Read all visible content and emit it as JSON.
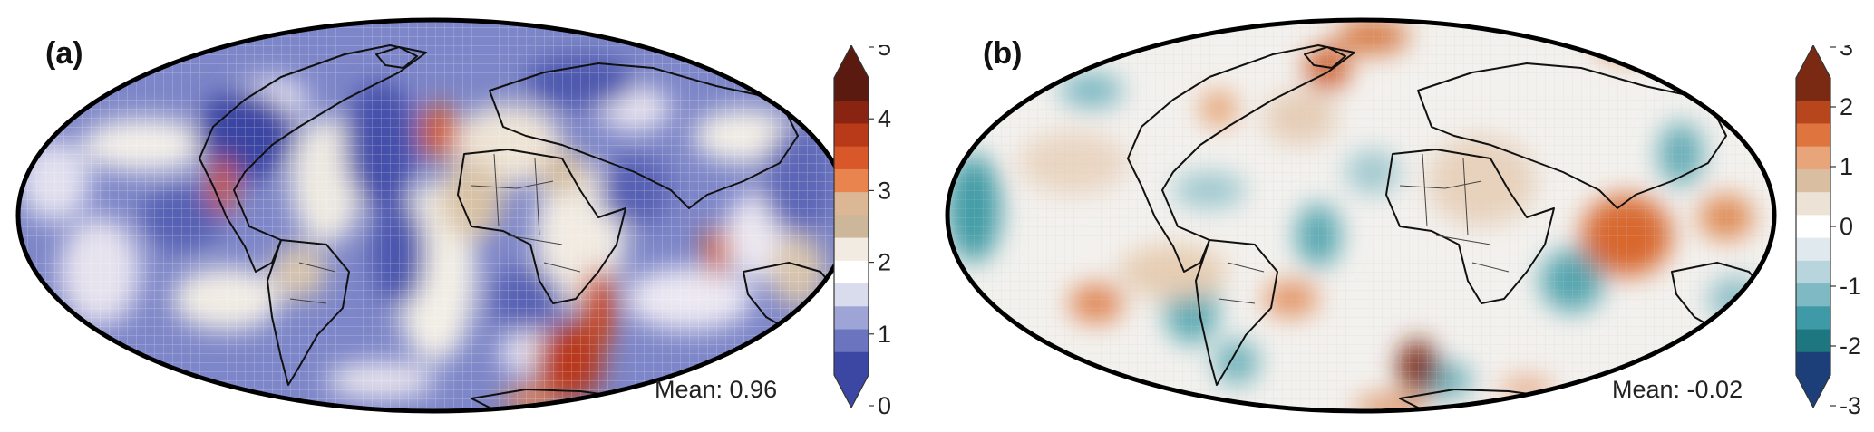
{
  "panels": [
    {
      "label": "(a)",
      "mean_text": "Mean: 0.96",
      "colorbar": {
        "min": 0,
        "max": 5,
        "ticks": [
          "5",
          "4",
          "3",
          "2",
          "1",
          "0"
        ],
        "colors_top_to_bottom": [
          "#5a1a10",
          "#8a2412",
          "#b83a18",
          "#d9582a",
          "#e9844f",
          "#dcb796",
          "#cdb79a",
          "#f2ebe2",
          "#ffffff",
          "#d8dced",
          "#9ea5d6",
          "#6b74bf",
          "#3c47a3"
        ]
      }
    },
    {
      "label": "(b)",
      "mean_text": "Mean: -0.02",
      "colorbar": {
        "min": -3,
        "max": 3,
        "ticks": [
          "3",
          "2",
          "1",
          "0",
          "-1",
          "-2",
          "-3"
        ],
        "colors_top_to_bottom": [
          "#7a2a12",
          "#b8461c",
          "#e0743e",
          "#e9a57a",
          "#d9bea2",
          "#ece2d6",
          "#ffffff",
          "#dfe9ee",
          "#b8d5de",
          "#7fb9c4",
          "#3e9aa6",
          "#1e7680",
          "#1c3f7a"
        ]
      }
    }
  ],
  "colors": {
    "blue_low": "#4b55b0",
    "white_mid": "#ffffff",
    "red_high": "#c84a1e",
    "teal_low": "#2f8f98",
    "coastline": "#111111"
  }
}
